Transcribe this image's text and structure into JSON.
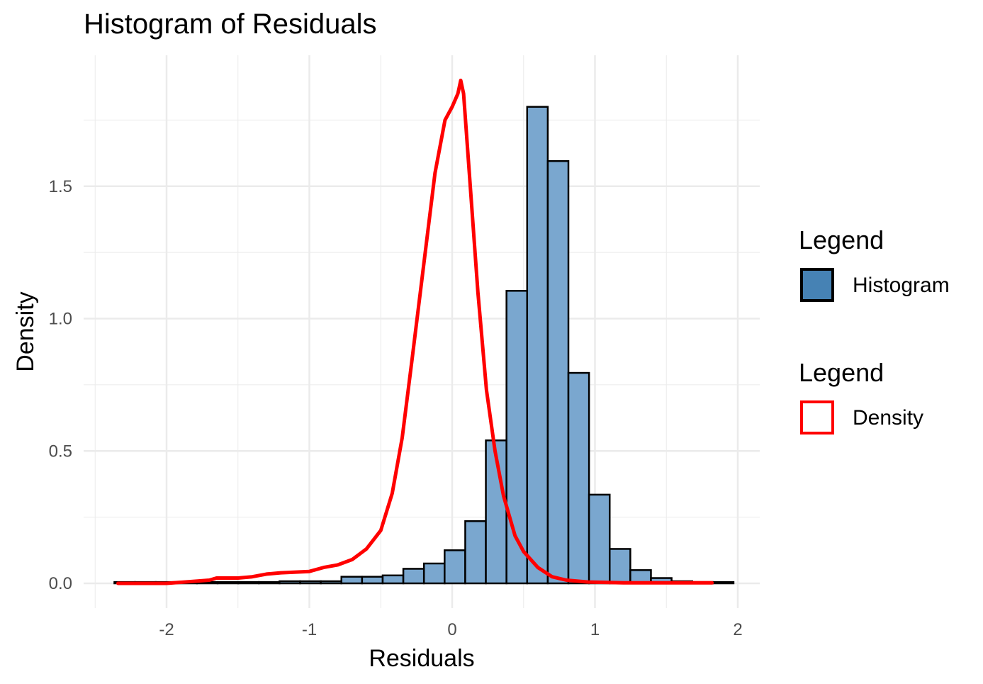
{
  "chart_data": {
    "type": "bar",
    "title": "Histogram of Residuals",
    "xlabel": "Residuals",
    "ylabel": "Density",
    "xlim": [
      -2.5,
      2.15
    ],
    "ylim": [
      -0.1,
      2.0
    ],
    "x_ticks": [
      -2,
      -1,
      0,
      1,
      2
    ],
    "x_tick_labels": [
      "-2",
      "-1",
      "0",
      "1",
      "2"
    ],
    "y_ticks": [
      0.0,
      0.5,
      1.0,
      1.5
    ],
    "y_tick_labels": [
      "0.0",
      "0.5",
      "1.0",
      "1.5"
    ],
    "grid": true,
    "colors": {
      "bar_fill": "#7AA7CF",
      "bar_outline": "#000000",
      "density_line": "#FF0000",
      "legend_fill": "#4682B4",
      "grid": "#EBEBEB"
    },
    "histogram": {
      "name": "Histogram",
      "bin_width": 0.1445,
      "bin_start": -2.365,
      "values": [
        0.005,
        0.005,
        0.005,
        0.005,
        0.005,
        0.005,
        0.005,
        0.005,
        0.008,
        0.008,
        0.008,
        0.025,
        0.025,
        0.03,
        0.055,
        0.075,
        0.125,
        0.235,
        0.54,
        1.105,
        1.8,
        1.595,
        0.795,
        0.335,
        0.13,
        0.05,
        0.02,
        0.008,
        0.005,
        0.005
      ]
    },
    "density": {
      "name": "Density",
      "x": [
        -2.34,
        -2.0,
        -1.7,
        -1.65,
        -1.5,
        -1.4,
        -1.3,
        -1.2,
        -1.0,
        -0.9,
        -0.8,
        -0.75,
        -0.7,
        -0.6,
        -0.5,
        -0.42,
        -0.35,
        -0.28,
        -0.2,
        -0.12,
        -0.05,
        0.0,
        0.04,
        0.06,
        0.08,
        0.12,
        0.18,
        0.24,
        0.3,
        0.36,
        0.44,
        0.5,
        0.6,
        0.7,
        0.8,
        0.95,
        1.2,
        1.5,
        1.82
      ],
      "y": [
        0.0,
        0.0,
        0.012,
        0.02,
        0.02,
        0.025,
        0.035,
        0.04,
        0.045,
        0.06,
        0.07,
        0.08,
        0.09,
        0.13,
        0.2,
        0.34,
        0.55,
        0.85,
        1.2,
        1.55,
        1.75,
        1.8,
        1.85,
        1.9,
        1.85,
        1.55,
        1.1,
        0.73,
        0.5,
        0.33,
        0.18,
        0.12,
        0.06,
        0.025,
        0.012,
        0.005,
        0.002,
        0.002,
        0.002
      ]
    },
    "legend": {
      "position": "right",
      "groups": [
        {
          "title": "Legend",
          "label": "Histogram"
        },
        {
          "title": "Legend",
          "label": "Density"
        }
      ]
    }
  }
}
